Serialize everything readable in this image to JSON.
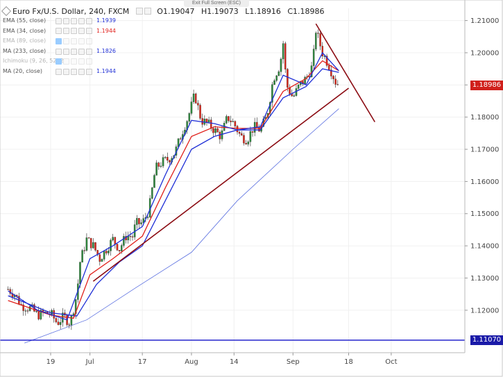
{
  "window": {
    "exit_fullscreen": "Exit Full Screen (ESC)"
  },
  "header": {
    "symbol": "Euro Fx/U.S. Dollar, 240, FXCM",
    "open": "O1.19047",
    "high": "H1.19073",
    "low": "L1.18916",
    "close": "C1.18986"
  },
  "indicators": [
    {
      "name": "EMA (55, close)",
      "value": "1.1939",
      "color": "#1f2fd6",
      "visible": true
    },
    {
      "name": "EMA (34, close)",
      "value": "1.1944",
      "color": "#e0201b",
      "visible": true
    },
    {
      "name": "EMA (89, close)",
      "value": "",
      "color": "#999999",
      "visible": false
    },
    {
      "name": "MA (233, close)",
      "value": "1.1826",
      "color": "#1f2fd6",
      "visible": true
    },
    {
      "name": "Ichimoku (9, 26, 52, 26)",
      "value": "",
      "color": "#999999",
      "visible": false
    },
    {
      "name": "MA (20, close)",
      "value": "1.1944",
      "color": "#1f2fd6",
      "visible": true
    }
  ],
  "price_badges": [
    {
      "label": "1.18986",
      "value": 1.18986,
      "color": "#d0201b"
    },
    {
      "label": "1.11070",
      "value": 1.1107,
      "color": "#1a1aa8"
    }
  ],
  "colors": {
    "up": "#2e8b3e",
    "down": "#e0281b",
    "trendline": "#8b0b12",
    "hline": "#1010c8"
  },
  "chart_data": {
    "type": "candlestick",
    "title": "Euro Fx/U.S. Dollar, 240, FXCM",
    "y_ticks": [
      "1.21000",
      "1.20000",
      "1.19000",
      "1.18000",
      "1.17000",
      "1.16000",
      "1.15000",
      "1.14000",
      "1.13000",
      "1.12000"
    ],
    "ylim": [
      1.1068,
      1.2138
    ],
    "x_ticks": [
      "19",
      "Jul",
      "17",
      "Aug",
      "14",
      "Sep",
      "18",
      "Oct"
    ],
    "x_tick_dates": [
      "2017-06-19",
      "2017-07-01",
      "2017-07-17",
      "2017-08-01",
      "2017-08-14",
      "2017-09-01",
      "2017-09-18",
      "2017-10-01"
    ],
    "close_path": [
      [
        "2017-06-06",
        1.1265
      ],
      [
        "2017-06-08",
        1.125
      ],
      [
        "2017-06-10",
        1.1215
      ],
      [
        "2017-06-13",
        1.1205
      ],
      [
        "2017-06-15",
        1.1185
      ],
      [
        "2017-06-17",
        1.119
      ],
      [
        "2017-06-19",
        1.119
      ],
      [
        "2017-06-21",
        1.116
      ],
      [
        "2017-06-23",
        1.118
      ],
      [
        "2017-06-25",
        1.116
      ],
      [
        "2017-06-27",
        1.125
      ],
      [
        "2017-06-28",
        1.135
      ],
      [
        "2017-06-30",
        1.142
      ],
      [
        "2017-07-02",
        1.14
      ],
      [
        "2017-07-04",
        1.136
      ],
      [
        "2017-07-06",
        1.139
      ],
      [
        "2017-07-08",
        1.142
      ],
      [
        "2017-07-10",
        1.139
      ],
      [
        "2017-07-12",
        1.143
      ],
      [
        "2017-07-14",
        1.143
      ],
      [
        "2017-07-15",
        1.147
      ],
      [
        "2017-07-17",
        1.147
      ],
      [
        "2017-07-19",
        1.151
      ],
      [
        "2017-07-21",
        1.164
      ],
      [
        "2017-07-23",
        1.166
      ],
      [
        "2017-07-25",
        1.167
      ],
      [
        "2017-07-27",
        1.169
      ],
      [
        "2017-07-29",
        1.175
      ],
      [
        "2017-07-31",
        1.18
      ],
      [
        "2017-08-02",
        1.187
      ],
      [
        "2017-08-04",
        1.179
      ],
      [
        "2017-08-06",
        1.178
      ],
      [
        "2017-08-08",
        1.176
      ],
      [
        "2017-08-10",
        1.174
      ],
      [
        "2017-08-12",
        1.18
      ],
      [
        "2017-08-14",
        1.178
      ],
      [
        "2017-08-16",
        1.174
      ],
      [
        "2017-08-18",
        1.173
      ],
      [
        "2017-08-20",
        1.177
      ],
      [
        "2017-08-22",
        1.176
      ],
      [
        "2017-08-24",
        1.18
      ],
      [
        "2017-08-26",
        1.192
      ],
      [
        "2017-08-28",
        1.196
      ],
      [
        "2017-08-29",
        1.203
      ],
      [
        "2017-08-30",
        1.19
      ],
      [
        "2017-09-01",
        1.186
      ],
      [
        "2017-09-03",
        1.19
      ],
      [
        "2017-09-05",
        1.192
      ],
      [
        "2017-09-07",
        1.196
      ],
      [
        "2017-09-08",
        1.207
      ],
      [
        "2017-09-10",
        1.2
      ],
      [
        "2017-09-12",
        1.196
      ],
      [
        "2017-09-14",
        1.191
      ],
      [
        "2017-09-15",
        1.19
      ]
    ],
    "series": [
      {
        "name": "EMA (55, close)",
        "color": "#1f2fd6",
        "values": [
          [
            "2017-06-06",
            1.1245
          ],
          [
            "2017-06-19",
            1.1192
          ],
          [
            "2017-06-27",
            1.1182
          ],
          [
            "2017-07-03",
            1.128
          ],
          [
            "2017-07-10",
            1.135
          ],
          [
            "2017-07-17",
            1.14
          ],
          [
            "2017-07-24",
            1.154
          ],
          [
            "2017-08-01",
            1.17
          ],
          [
            "2017-08-08",
            1.174
          ],
          [
            "2017-08-15",
            1.176
          ],
          [
            "2017-08-22",
            1.176
          ],
          [
            "2017-08-29",
            1.186
          ],
          [
            "2017-09-05",
            1.1895
          ],
          [
            "2017-09-10",
            1.195
          ],
          [
            "2017-09-15",
            1.1939
          ]
        ]
      },
      {
        "name": "EMA (34, close)",
        "color": "#e0201b",
        "values": [
          [
            "2017-06-06",
            1.123
          ],
          [
            "2017-06-19",
            1.1185
          ],
          [
            "2017-06-26",
            1.1175
          ],
          [
            "2017-07-01",
            1.131
          ],
          [
            "2017-07-08",
            1.136
          ],
          [
            "2017-07-17",
            1.143
          ],
          [
            "2017-07-24",
            1.158
          ],
          [
            "2017-08-01",
            1.174
          ],
          [
            "2017-08-08",
            1.177
          ],
          [
            "2017-08-15",
            1.1765
          ],
          [
            "2017-08-22",
            1.1765
          ],
          [
            "2017-08-29",
            1.188
          ],
          [
            "2017-09-05",
            1.192
          ],
          [
            "2017-09-10",
            1.1975
          ],
          [
            "2017-09-15",
            1.1944
          ]
        ]
      },
      {
        "name": "MA (20, close)",
        "color": "#1f2fd6",
        "values": [
          [
            "2017-06-06",
            1.126
          ],
          [
            "2017-06-15",
            1.12
          ],
          [
            "2017-06-24",
            1.117
          ],
          [
            "2017-07-01",
            1.136
          ],
          [
            "2017-07-08",
            1.14
          ],
          [
            "2017-07-17",
            1.146
          ],
          [
            "2017-07-24",
            1.162
          ],
          [
            "2017-08-01",
            1.179
          ],
          [
            "2017-08-08",
            1.178
          ],
          [
            "2017-08-15",
            1.176
          ],
          [
            "2017-08-22",
            1.177
          ],
          [
            "2017-08-29",
            1.193
          ],
          [
            "2017-09-05",
            1.19
          ],
          [
            "2017-09-10",
            1.2
          ],
          [
            "2017-09-15",
            1.1944
          ]
        ]
      },
      {
        "name": "MA (233, close)",
        "color": "#1f2fd6",
        "values": [
          [
            "2017-06-11",
            1.1098
          ],
          [
            "2017-06-30",
            1.117
          ],
          [
            "2017-07-15",
            1.127
          ],
          [
            "2017-08-01",
            1.138
          ],
          [
            "2017-08-15",
            1.154
          ],
          [
            "2017-09-01",
            1.17
          ],
          [
            "2017-09-15",
            1.1826
          ]
        ]
      }
    ],
    "trendlines": [
      {
        "name": "support",
        "from": [
          "2017-07-02",
          1.129
        ],
        "to": [
          "2017-09-18",
          1.189
        ]
      },
      {
        "name": "resistance",
        "from": [
          "2017-09-08",
          1.209
        ],
        "to": [
          "2017-09-26",
          1.1785
        ]
      }
    ],
    "hlines": [
      {
        "value": 1.1107
      }
    ],
    "grid": true
  }
}
